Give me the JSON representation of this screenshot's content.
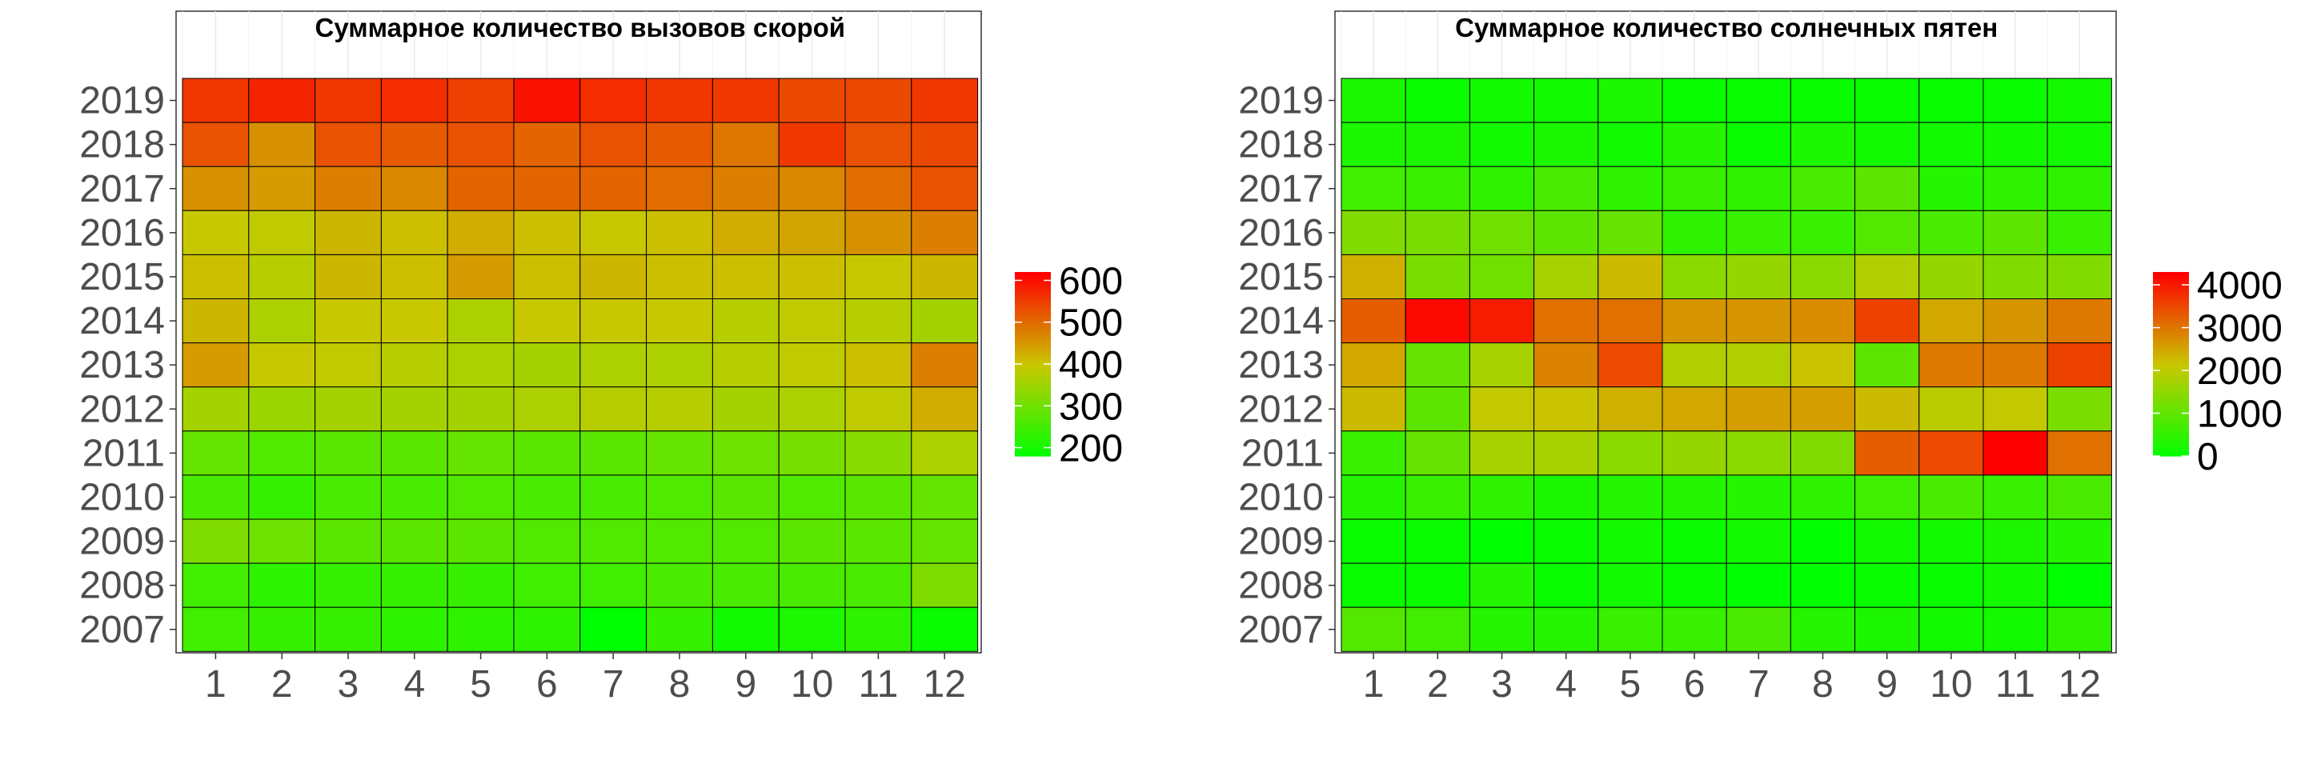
{
  "chart_data": [
    {
      "type": "heatmap",
      "title": "Суммарное количество вызовов скорой",
      "x": [
        "1",
        "2",
        "3",
        "4",
        "5",
        "6",
        "7",
        "8",
        "9",
        "10",
        "11",
        "12"
      ],
      "y": [
        "2019",
        "2018",
        "2017",
        "2016",
        "2015",
        "2014",
        "2013",
        "2012",
        "2011",
        "2010",
        "2009",
        "2008",
        "2007"
      ],
      "values": [
        [
          560,
          580,
          560,
          570,
          550,
          600,
          570,
          560,
          560,
          540,
          540,
          560
        ],
        [
          530,
          460,
          530,
          520,
          530,
          510,
          530,
          520,
          490,
          560,
          530,
          540
        ],
        [
          460,
          450,
          480,
          470,
          510,
          510,
          510,
          500,
          480,
          470,
          500,
          530
        ],
        [
          400,
          390,
          420,
          410,
          430,
          410,
          400,
          410,
          430,
          440,
          460,
          480
        ],
        [
          410,
          380,
          420,
          410,
          450,
          410,
          420,
          410,
          410,
          410,
          400,
          420
        ],
        [
          420,
          370,
          400,
          400,
          370,
          400,
          400,
          400,
          380,
          390,
          380,
          360
        ],
        [
          450,
          400,
          390,
          380,
          370,
          360,
          370,
          370,
          380,
          390,
          410,
          480
        ],
        [
          360,
          350,
          360,
          360,
          360,
          370,
          380,
          380,
          360,
          370,
          390,
          430
        ],
        [
          290,
          270,
          280,
          280,
          290,
          280,
          280,
          290,
          300,
          310,
          330,
          370
        ],
        [
          260,
          240,
          260,
          260,
          270,
          260,
          260,
          270,
          280,
          270,
          280,
          290
        ],
        [
          320,
          300,
          280,
          280,
          280,
          270,
          270,
          270,
          270,
          280,
          280,
          290
        ],
        [
          250,
          230,
          240,
          240,
          240,
          250,
          250,
          260,
          260,
          260,
          260,
          320
        ],
        [
          250,
          240,
          240,
          230,
          230,
          230,
          180,
          240,
          200,
          210,
          230,
          190
        ]
      ],
      "scale": {
        "min": 180,
        "max": 620,
        "ticks": [
          200,
          300,
          400,
          500,
          600
        ]
      },
      "legend": "right"
    },
    {
      "type": "heatmap",
      "title": "Суммарное количество солнечных пятен",
      "x": [
        "1",
        "2",
        "3",
        "4",
        "5",
        "6",
        "7",
        "8",
        "9",
        "10",
        "11",
        "12"
      ],
      "y": [
        "2019",
        "2018",
        "2017",
        "2016",
        "2015",
        "2014",
        "2013",
        "2012",
        "2011",
        "2010",
        "2009",
        "2008",
        "2007"
      ],
      "values": [
        [
          300,
          100,
          200,
          200,
          300,
          100,
          100,
          100,
          100,
          100,
          100,
          200
        ],
        [
          300,
          300,
          200,
          300,
          200,
          400,
          100,
          300,
          200,
          200,
          200,
          200
        ],
        [
          700,
          600,
          500,
          800,
          500,
          600,
          500,
          800,
          1000,
          400,
          500,
          500
        ],
        [
          1400,
          1300,
          1200,
          1000,
          1100,
          500,
          600,
          600,
          900,
          800,
          1000,
          600
        ],
        [
          2400,
          1300,
          1200,
          1800,
          2300,
          1500,
          1600,
          1500,
          1900,
          1600,
          1400,
          1400
        ],
        [
          3300,
          4200,
          4000,
          3100,
          3100,
          2700,
          2700,
          2800,
          3600,
          2500,
          2700,
          3000
        ],
        [
          2500,
          1100,
          1800,
          2900,
          3500,
          1900,
          1900,
          2200,
          1000,
          3000,
          3000,
          3600
        ],
        [
          2300,
          1000,
          2100,
          2200,
          2400,
          2500,
          2600,
          2600,
          2300,
          2000,
          2100,
          1300
        ],
        [
          600,
          1100,
          1800,
          1800,
          1500,
          1600,
          1500,
          1400,
          3300,
          3500,
          4300,
          3100
        ],
        [
          400,
          600,
          500,
          300,
          400,
          400,
          400,
          500,
          700,
          800,
          600,
          800
        ],
        [
          100,
          100,
          0,
          100,
          200,
          100,
          200,
          0,
          200,
          200,
          300,
          400
        ],
        [
          100,
          100,
          400,
          100,
          200,
          100,
          0,
          0,
          100,
          100,
          200,
          0
        ],
        [
          900,
          700,
          400,
          400,
          600,
          600,
          800,
          400,
          300,
          200,
          200,
          500
        ]
      ],
      "scale": {
        "min": 0,
        "max": 4300,
        "ticks": [
          0,
          1000,
          2000,
          3000,
          4000
        ]
      },
      "legend": "right"
    }
  ],
  "colors": {
    "low": "#00ff00",
    "mid": "#c8c800",
    "high": "#ff0000",
    "border": "#000000"
  }
}
